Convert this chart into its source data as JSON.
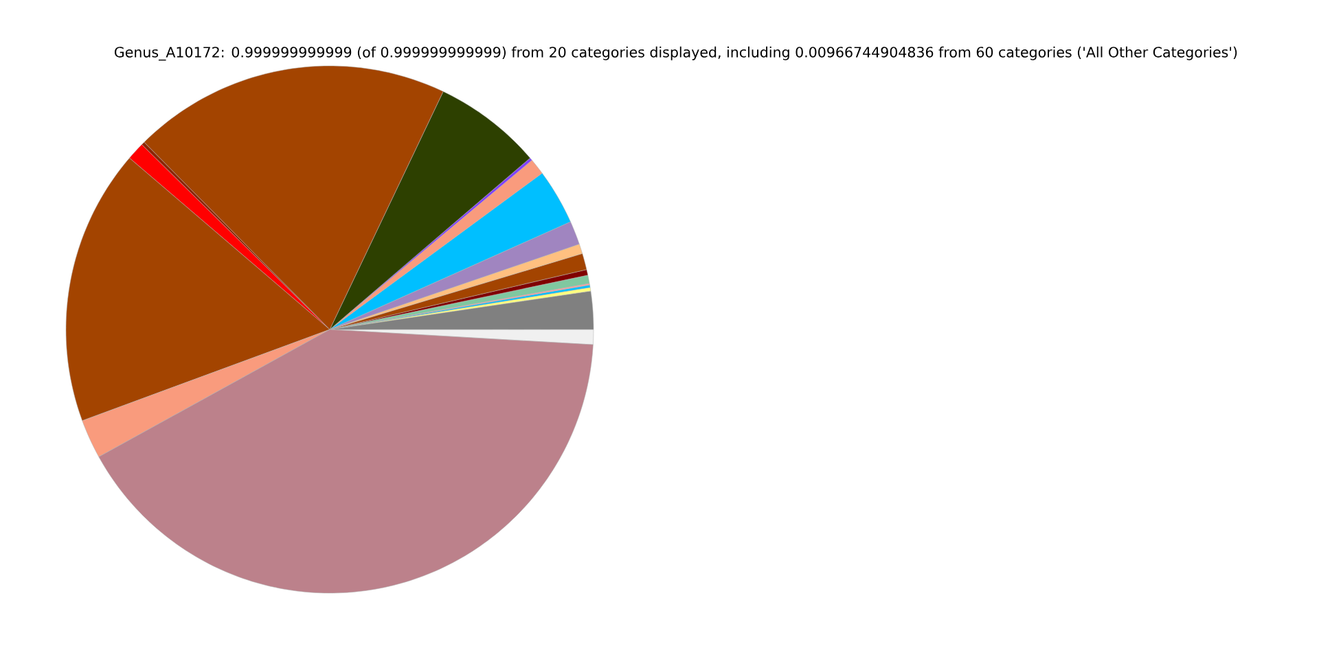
{
  "chart_data": {
    "type": "pie",
    "title": "Genus_A10172: 0.999999999999 (of 0.999999999999) from 20 categories displayed, including 0.00966744904836 from 60 categories ('All Other Categories')",
    "categories": [
      null,
      null,
      null,
      null,
      null,
      null,
      null,
      null,
      null,
      null,
      null,
      null,
      null,
      null,
      null,
      null,
      null,
      null,
      null,
      null
    ],
    "values": [
      0.92,
      2.33,
      0.22,
      0.15,
      0.1,
      0.5,
      0.35,
      1.0,
      0.6,
      1.45,
      3.4,
      1.0,
      0.17,
      6.65,
      19.5,
      0.2,
      1.1,
      16.9,
      2.4,
      41.06
    ],
    "colors": [
      "#f0f0f0",
      "#808080",
      "#ffff80",
      "#00bfff",
      "#f4a0a0",
      "#80c8a0",
      "#800000",
      "#a34400",
      "#ffc080",
      "#a085c0",
      "#00bfff",
      "#f99b7d",
      "#8040ff",
      "#2d4000",
      "#a34400",
      "#8b2500",
      "#ff0000",
      "#a34400",
      "#f99b7d",
      "#bc818b"
    ]
  }
}
